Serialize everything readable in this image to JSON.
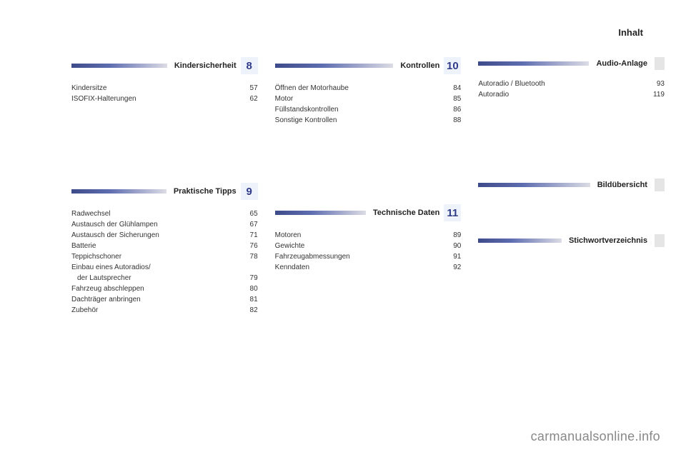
{
  "header": "Inhalt",
  "watermark": "carmanualsonline.info",
  "sections": [
    {
      "num": "8",
      "title": "Kindersicherheit",
      "show_num": true,
      "show_tab": false,
      "entries": [
        {
          "label": "Kindersitze",
          "page": "57"
        },
        {
          "label": "ISOFIX-Halterungen",
          "page": "62"
        }
      ]
    },
    {
      "num": "10",
      "title": "Kontrollen",
      "show_num": true,
      "show_tab": false,
      "entries": [
        {
          "label": "Öffnen der Motorhaube",
          "page": "84"
        },
        {
          "label": "Motor",
          "page": "85"
        },
        {
          "label": "Füllstandskontrollen",
          "page": "86"
        },
        {
          "label": "Sonstige Kontrollen",
          "page": "88"
        }
      ]
    },
    {
      "num": "",
      "title": "Audio-Anlage",
      "show_num": false,
      "show_tab": true,
      "entries": [
        {
          "label": "Autoradio / Bluetooth",
          "page": "93"
        },
        {
          "label": "Autoradio",
          "page": "119"
        }
      ]
    },
    {
      "num": "9",
      "title": "Praktische Tipps",
      "show_num": true,
      "show_tab": false,
      "entries": [
        {
          "label": "Radwechsel",
          "page": "65"
        },
        {
          "label": "Austausch der Glühlampen",
          "page": "67"
        },
        {
          "label": "Austausch der Sicherungen",
          "page": "71"
        },
        {
          "label": "Batterie",
          "page": "76"
        },
        {
          "label": "Teppichschoner",
          "page": "78"
        },
        {
          "label": "Einbau eines Autoradios/",
          "page": ""
        },
        {
          "label": "der Lautsprecher",
          "page": "79",
          "sub": true
        },
        {
          "label": "Fahrzeug abschleppen",
          "page": "80"
        },
        {
          "label": "Dachträger anbringen",
          "page": "81"
        },
        {
          "label": "Zubehör",
          "page": "82"
        }
      ]
    },
    {
      "num": "11",
      "title": "Technische Daten",
      "show_num": true,
      "show_tab": false,
      "entries": [
        {
          "label": "Motoren",
          "page": "89"
        },
        {
          "label": "Gewichte",
          "page": "90"
        },
        {
          "label": "Fahrzeugabmessungen",
          "page": "91"
        },
        {
          "label": "Kenndaten",
          "page": "92"
        }
      ]
    },
    {
      "num": "",
      "title": "Bildübersicht",
      "show_num": false,
      "show_tab": true,
      "entries": []
    }
  ],
  "extra_section": {
    "title": "Stichwortverzeichnis"
  }
}
